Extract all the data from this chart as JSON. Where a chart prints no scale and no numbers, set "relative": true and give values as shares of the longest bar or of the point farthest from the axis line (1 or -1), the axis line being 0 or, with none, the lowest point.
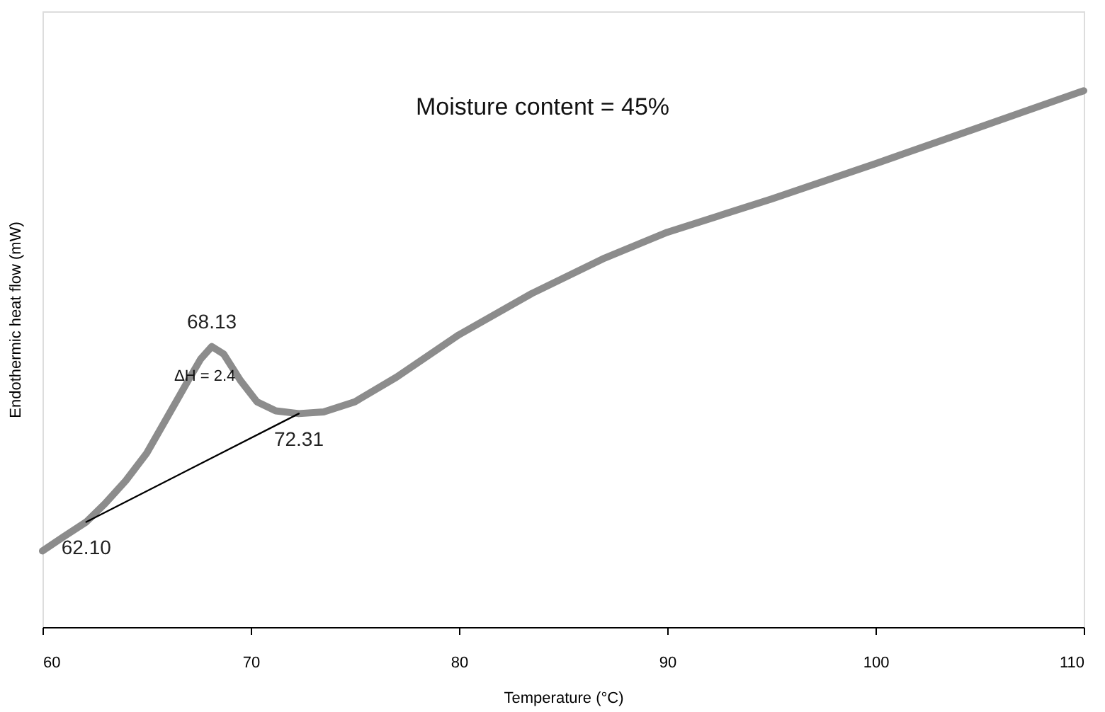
{
  "chart_data": {
    "type": "line",
    "relative": true,
    "xlabel": "Temperature (°C)",
    "ylabel": "Endothermic heat flow (mW)",
    "xlim": [
      60,
      110
    ],
    "xticks": [
      60,
      70,
      80,
      90,
      100,
      110
    ],
    "grid": false,
    "marker": "none",
    "line_style": "solid",
    "series": [
      {
        "color": "#8c8c8c",
        "x": [
          60,
          61,
          62.1,
          63,
          64,
          65,
          66,
          67,
          67.6,
          68.13,
          68.7,
          69.5,
          70.3,
          71.2,
          72.31,
          73.5,
          75,
          77,
          80,
          83.5,
          87,
          90,
          95,
          100,
          105,
          110
        ],
        "values": [
          0.142,
          0.168,
          0.196,
          0.23,
          0.273,
          0.324,
          0.392,
          0.46,
          0.5,
          0.523,
          0.509,
          0.46,
          0.42,
          0.403,
          0.398,
          0.401,
          0.42,
          0.466,
          0.545,
          0.622,
          0.688,
          0.736,
          0.798,
          0.864,
          0.932,
          1.0
        ]
      },
      {
        "color": "#000000",
        "x": [
          62.1,
          72.31
        ],
        "values": [
          0.196,
          0.398
        ]
      }
    ],
    "annotations": [
      {
        "text": "68.13",
        "x": 68.13,
        "y": 0.523
      },
      {
        "text": "62.10",
        "x": 62.1,
        "y": 0.196
      },
      {
        "text": "72.31",
        "x": 72.31,
        "y": 0.398
      },
      "ΔH = 2.4",
      "Moisture content = 45%"
    ]
  }
}
